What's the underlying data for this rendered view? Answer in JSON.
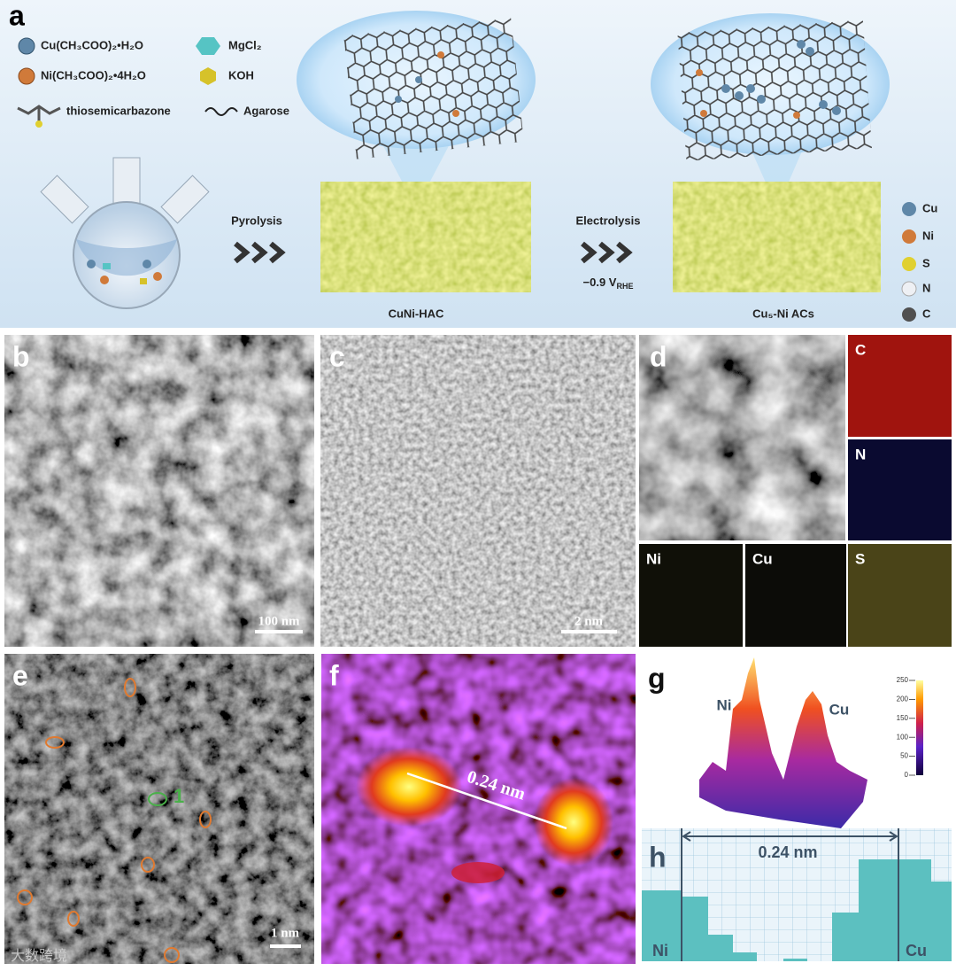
{
  "panels": {
    "a": {
      "label": "a",
      "reagents": [
        "Cu(CH₃COO)₂•H₂O",
        "Ni(CH₃COO)₂•4H₂O",
        "MgCl₂",
        "KOH"
      ],
      "ligand": "thiosemicarbazone",
      "binder": "Agarose",
      "step1": "Pyrolysis",
      "step2": "Electrolysis",
      "potential": "−0.9 V",
      "potential_subscript": "RHE",
      "product1": "CuNi-HAC",
      "product2": "Cu₅-Ni ACs",
      "atoms": [
        "Cu",
        "Ni",
        "S",
        "N",
        "C"
      ]
    },
    "b": {
      "label": "b",
      "scale_bar": "100 nm"
    },
    "c": {
      "label": "c",
      "scale_bar": "2 nm"
    },
    "d": {
      "label": "d",
      "maps": [
        "C",
        "N",
        "Ni",
        "Cu",
        "S"
      ]
    },
    "e": {
      "label": "e",
      "scale_bar": "1 nm",
      "site": "1"
    },
    "f": {
      "label": "f",
      "distance": "0.24 nm"
    },
    "g": {
      "label": "g",
      "peaks": [
        "Ni",
        "Cu"
      ],
      "colorbar_ticks": [
        250,
        200,
        150,
        100,
        50,
        0
      ]
    },
    "h": {
      "label": "h",
      "distance": "0.24 nm",
      "ends": [
        "Ni",
        "Cu"
      ]
    }
  },
  "watermark": "大数跨境"
}
